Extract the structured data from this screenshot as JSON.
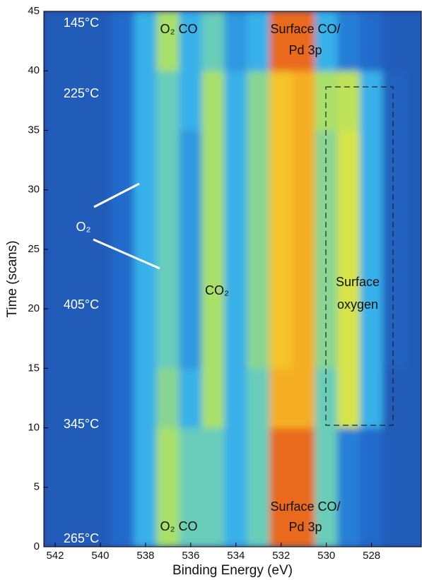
{
  "chart_data": {
    "type": "heatmap",
    "xlabel": "Binding Energy (eV)",
    "ylabel": "Time (scans)",
    "x": [
      542,
      541,
      540,
      539,
      538,
      537,
      536,
      535,
      534,
      533,
      532,
      531,
      530,
      529,
      528,
      527,
      526
    ],
    "y": [
      2.5,
      7.5,
      12.5,
      17.5,
      22.5,
      27.5,
      32.5,
      37.5,
      42.5
    ],
    "z": [
      [
        1,
        1,
        1,
        1.5,
        3,
        5,
        4,
        4,
        3,
        4,
        9,
        9,
        4,
        2,
        1.5,
        1,
        1
      ],
      [
        1,
        1,
        1,
        1.5,
        3,
        5,
        4,
        4,
        3,
        4,
        9,
        9,
        4,
        2,
        1.5,
        1,
        1
      ],
      [
        1,
        1,
        1,
        1.5,
        3,
        4.5,
        3,
        5,
        3,
        4,
        8,
        8,
        4,
        6,
        3,
        1,
        1
      ],
      [
        1,
        1,
        1,
        1.5,
        3,
        4,
        2.5,
        5,
        3,
        4.5,
        7.5,
        8,
        4.5,
        6,
        3,
        1.2,
        1
      ],
      [
        1,
        1,
        1,
        1.5,
        3,
        4,
        2.5,
        5,
        3,
        4.5,
        7.5,
        8,
        4.5,
        6,
        3,
        1.2,
        1
      ],
      [
        1,
        1,
        1,
        1.5,
        3,
        4,
        2.5,
        5,
        3,
        4.5,
        7.5,
        8,
        4.5,
        6,
        3,
        1.2,
        1
      ],
      [
        1,
        1,
        1,
        1.5,
        3,
        4,
        2.5,
        5,
        3,
        4.5,
        7.5,
        8,
        4.5,
        6,
        3,
        1.2,
        1
      ],
      [
        1,
        1,
        1,
        1.5,
        3,
        4,
        3,
        5,
        3,
        4.5,
        7.5,
        8,
        5,
        5.5,
        3,
        1.2,
        1
      ],
      [
        1,
        1,
        1,
        1.5,
        3,
        5,
        3,
        4,
        2.5,
        3,
        9,
        9,
        3,
        2,
        1.5,
        1,
        1
      ]
    ],
    "zlim": [
      0,
      10
    ],
    "colormap": [
      "#2b3f94",
      "#1f6fd1",
      "#3fc0ef",
      "#a8e06a",
      "#f5e632",
      "#f5a01f",
      "#d61a1a"
    ],
    "xlim": [
      542.5,
      525.8
    ],
    "ylim": [
      0,
      45
    ],
    "xticks": [
      542,
      540,
      538,
      536,
      534,
      532,
      530,
      528
    ],
    "yticks": [
      0,
      5,
      10,
      15,
      20,
      25,
      30,
      35,
      40,
      45
    ],
    "annotations": [
      "145°C",
      "225°C",
      "405°C",
      "345°C",
      "265°C",
      "O₂ CO",
      "O₂ CO",
      "Surface CO/",
      "Pd 3p",
      "Surface CO/",
      "Pd 3p",
      "CO₂",
      "O₂",
      "Surface",
      "oxygen"
    ]
  }
}
